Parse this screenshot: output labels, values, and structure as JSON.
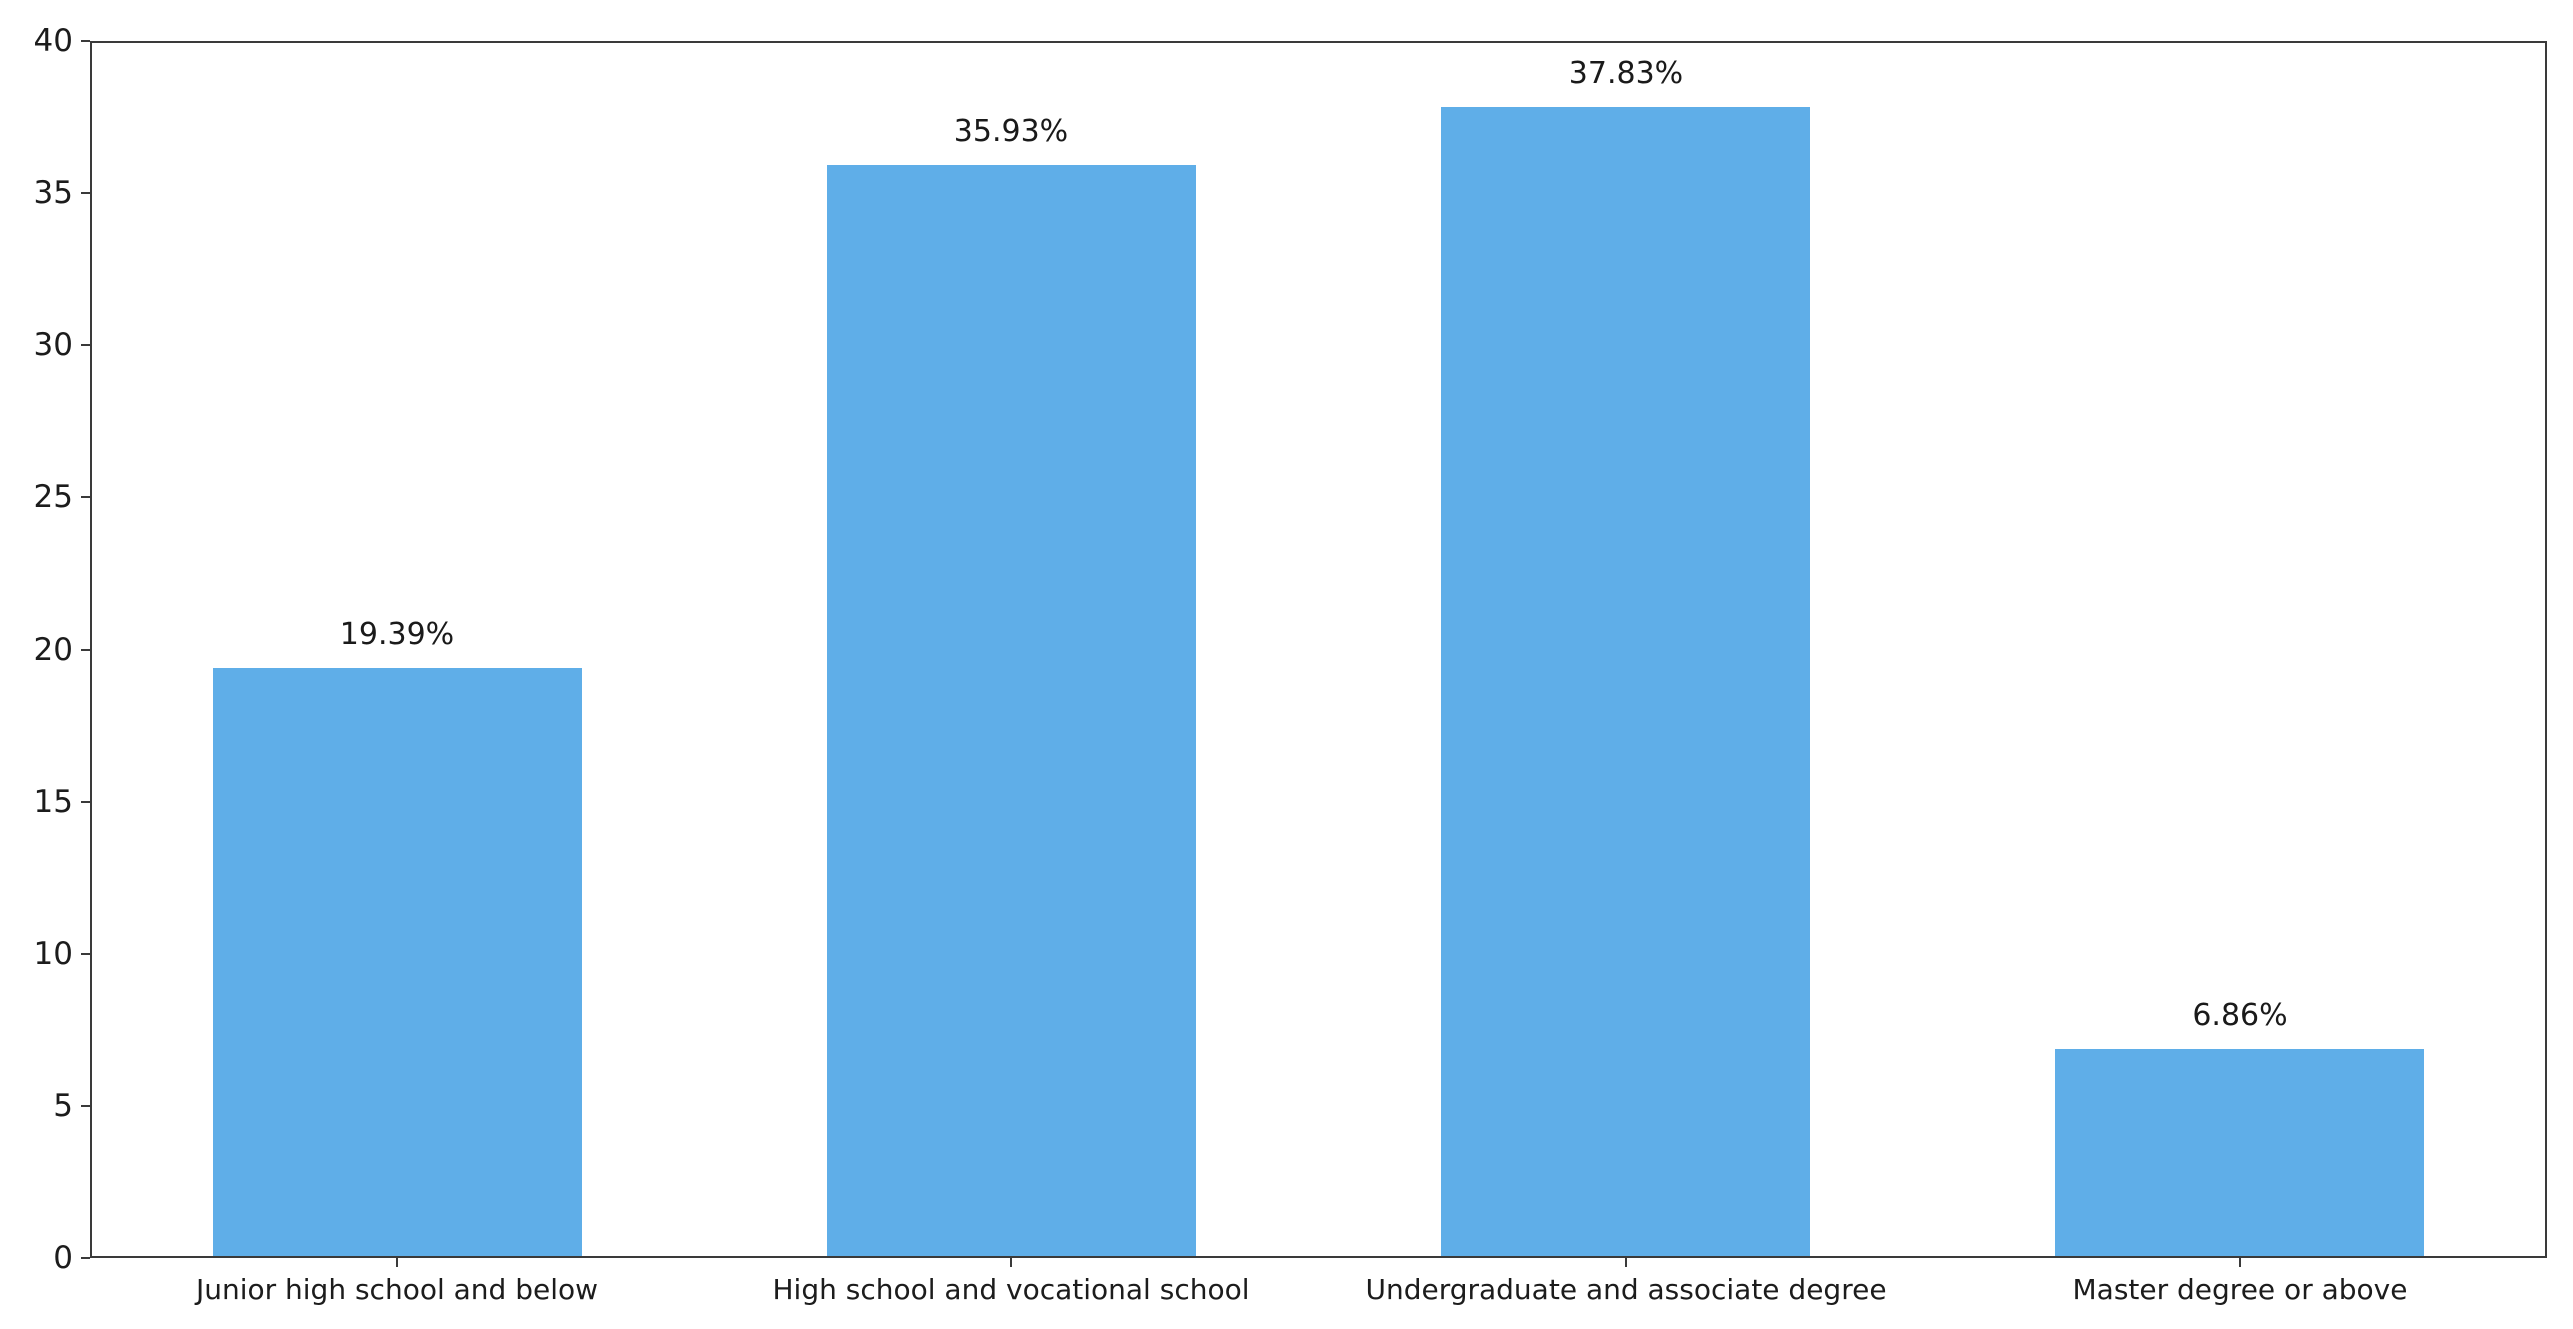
{
  "chart_data": {
    "type": "bar",
    "title": "",
    "xlabel": "",
    "ylabel": "",
    "categories": [
      "Junior high school and below",
      "High school and vocational school",
      "Undergraduate and associate degree",
      "Master degree or above"
    ],
    "values": [
      19.39,
      35.93,
      37.83,
      6.86
    ],
    "bar_labels": [
      "19.39%",
      "35.93%",
      "37.83%",
      "6.86%"
    ],
    "ylim": [
      0,
      40
    ],
    "ytick_step": 5,
    "ytick_labels": [
      "0",
      "5",
      "10",
      "15",
      "20",
      "25",
      "30",
      "35",
      "40"
    ],
    "grid": false,
    "legend": null,
    "frame": "full-box",
    "bar_width_fraction": 0.6,
    "colors": {
      "bar": "#5FAEE8",
      "spine": "#3a3a3a",
      "tick": "#3a3a3a",
      "text": "#1c1c1c",
      "background": "#ffffff"
    }
  }
}
